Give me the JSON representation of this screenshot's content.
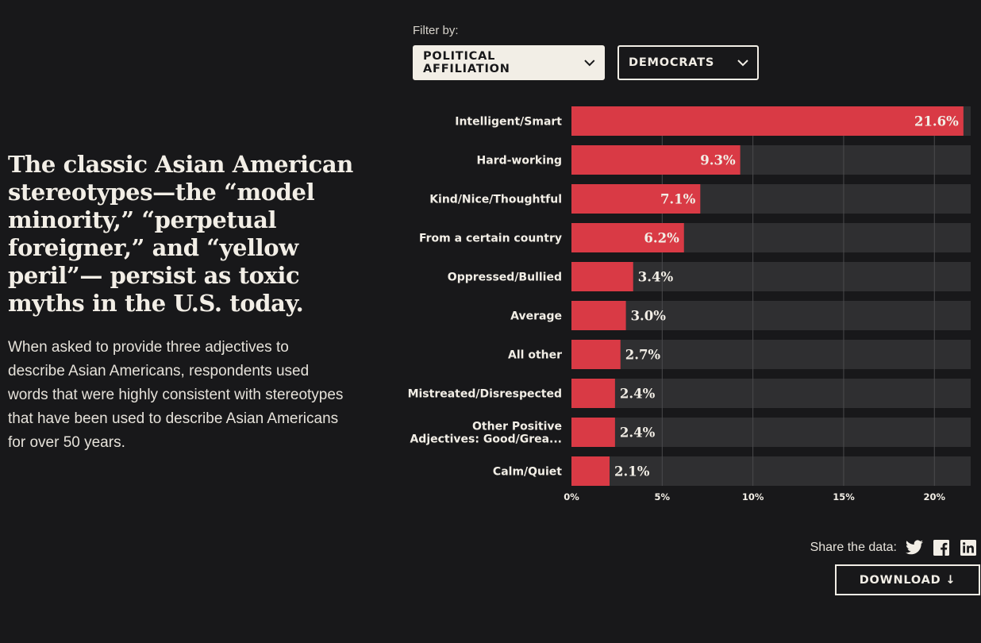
{
  "article": {
    "headline": "The classic Asian American stereotypes—the “model minority,” “perpetual foreigner,” and “yellow peril”— persist as toxic myths in the U.S. today.",
    "body": "When asked to provide three adjectives to describe Asian Americans, respondents used words that were highly consistent with stereotypes that have been used to describe Asian Americans for over 50 years."
  },
  "filters": {
    "label": "Filter by:",
    "affiliation": "POLITICAL AFFILIATION",
    "group": "DEMOCRATS"
  },
  "colors": {
    "bar": "#d93a45",
    "track": "#2f2f31",
    "grid": "#4a4a4c",
    "text": "#f2eee6"
  },
  "chart_data": {
    "type": "bar",
    "orientation": "horizontal",
    "categories": [
      "Intelligent/Smart",
      "Hard-working",
      "Kind/Nice/Thoughtful",
      "From a certain country",
      "Oppressed/Bullied",
      "Average",
      "All other",
      "Mistreated/Disrespected",
      "Other Positive Adjectives: Good/Grea...",
      "Calm/Quiet"
    ],
    "category_lines": [
      [
        "Intelligent/Smart"
      ],
      [
        "Hard-working"
      ],
      [
        "Kind/Nice/Thoughtful"
      ],
      [
        "From a certain country"
      ],
      [
        "Oppressed/Bullied"
      ],
      [
        "Average"
      ],
      [
        "All other"
      ],
      [
        "Mistreated/Disrespected"
      ],
      [
        "Other Positive",
        "Adjectives: Good/Grea..."
      ],
      [
        "Calm/Quiet"
      ]
    ],
    "values": [
      21.6,
      9.3,
      7.1,
      6.2,
      3.4,
      3.0,
      2.7,
      2.4,
      2.4,
      2.1
    ],
    "value_labels": [
      "21.6%",
      "9.3%",
      "7.1%",
      "6.2%",
      "3.4%",
      "3.0%",
      "2.7%",
      "2.4%",
      "2.4%",
      "2.1%"
    ],
    "xlim": [
      0,
      22
    ],
    "x_ticks": [
      0,
      5,
      10,
      15,
      20
    ],
    "x_tick_labels": [
      "0%",
      "5%",
      "10%",
      "15%",
      "20%"
    ],
    "grid": true
  },
  "share": {
    "label": "Share the data:",
    "icons": [
      "twitter-icon",
      "facebook-icon",
      "linkedin-icon"
    ]
  },
  "download": {
    "label": "DOWNLOAD ↓"
  }
}
